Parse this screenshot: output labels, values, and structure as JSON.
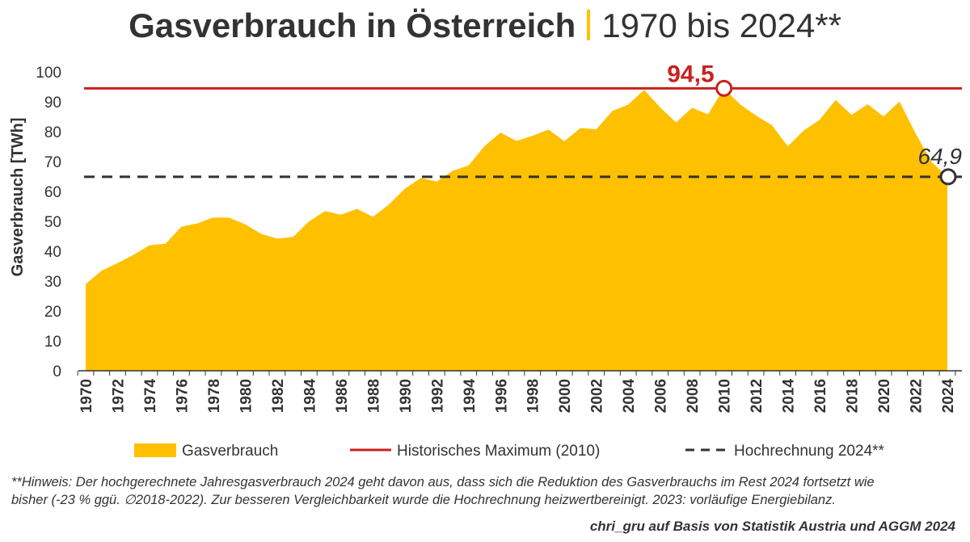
{
  "header": {
    "title": "Gasverbrauch in Österreich",
    "subtitle": "1970 bis 2024**"
  },
  "chart_data": {
    "type": "area",
    "ylabel": "Gasverbrauch [TWh]",
    "xlabel": "",
    "ylim": [
      0,
      100
    ],
    "yticks": [
      0,
      10,
      20,
      30,
      40,
      50,
      60,
      70,
      80,
      90,
      100
    ],
    "x": [
      1970,
      1971,
      1972,
      1973,
      1974,
      1975,
      1976,
      1977,
      1978,
      1979,
      1980,
      1981,
      1982,
      1983,
      1984,
      1985,
      1986,
      1987,
      1988,
      1989,
      1990,
      1991,
      1992,
      1993,
      1994,
      1995,
      1996,
      1997,
      1998,
      1999,
      2000,
      2001,
      2002,
      2003,
      2004,
      2005,
      2006,
      2007,
      2008,
      2009,
      2010,
      2011,
      2012,
      2013,
      2014,
      2015,
      2016,
      2017,
      2018,
      2019,
      2020,
      2021,
      2022,
      2023,
      2024
    ],
    "xticks": [
      "1970",
      "1972",
      "1974",
      "1976",
      "1978",
      "1980",
      "1982",
      "1984",
      "1986",
      "1988",
      "1990",
      "1992",
      "1994",
      "1996",
      "1998",
      "2000",
      "2002",
      "2004",
      "2006",
      "2008",
      "2010",
      "2012",
      "2014",
      "2016",
      "2018",
      "2020",
      "2022",
      "2024"
    ],
    "series": [
      {
        "name": "Gasverbrauch",
        "color": "#FFC000",
        "values": [
          29.0,
          33.5,
          36.0,
          38.8,
          42.0,
          42.5,
          48.2,
          49.3,
          51.3,
          51.2,
          49.0,
          45.8,
          44.2,
          44.8,
          50.0,
          53.4,
          52.2,
          54.2,
          51.5,
          55.6,
          60.9,
          64.5,
          63.3,
          66.9,
          68.7,
          75.2,
          79.7,
          76.9,
          78.6,
          80.7,
          76.8,
          81.2,
          80.8,
          86.9,
          89.1,
          94.0,
          88.1,
          83.1,
          88.0,
          85.8,
          94.5,
          89.2,
          85.4,
          82.2,
          75.1,
          80.4,
          84.0,
          90.6,
          85.6,
          89.2,
          85.1,
          90.1,
          79.5,
          69.9,
          64.9
        ]
      }
    ],
    "reference_lines": [
      {
        "name": "Historisches Maximum (2010)",
        "value": 94.5,
        "year": 2010,
        "label": "94,5",
        "color": "#C9211E",
        "style": "solid"
      },
      {
        "name": "Hochrechnung 2024**",
        "value": 64.9,
        "year": 2024,
        "label": "64,9",
        "color": "#333333",
        "style": "dashed"
      }
    ],
    "legend": {
      "position": "bottom",
      "items": [
        "Gasverbrauch",
        "Historisches Maximum (2010)",
        "Hochrechnung 2024**"
      ]
    }
  },
  "footnote": {
    "line1": "**Hinweis: Der hochgerechnete Jahresgasverbrauch 2024 geht davon aus, dass sich die Reduktion des Gasverbrauchs im Rest 2024 fortsetzt wie",
    "line2": "bisher (-23 % ggü. ∅2018-2022). Zur besseren Vergleichbarkeit wurde die Hochrechnung heizwertbereinigt. 2023: vorläufige Energiebilanz."
  },
  "credit": "chri_gru auf Basis von Statistik Austria und AGGM 2024"
}
